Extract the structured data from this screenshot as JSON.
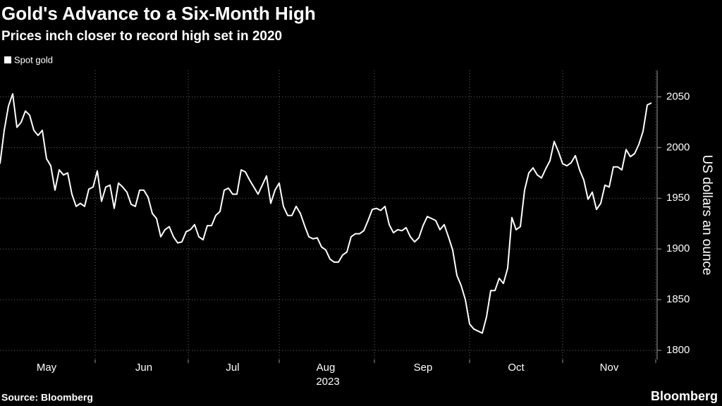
{
  "chart_data": {
    "type": "line",
    "title": "Gold's Advance to a Six-Month High",
    "subtitle": "Prices inch closer to record high set in 2020",
    "ylabel": "US dollars an ounce",
    "x_sublabel": "2023",
    "source": "Source: Bloomberg",
    "brand": "Bloomberg",
    "categories": [
      null,
      null,
      null,
      null,
      null,
      null,
      null,
      null,
      null,
      null,
      null,
      "May",
      null,
      null,
      null,
      null,
      null,
      null,
      null,
      null,
      null,
      null,
      null,
      null,
      null,
      null,
      null,
      null,
      null,
      null,
      null,
      null,
      null,
      null,
      "Jun",
      null,
      null,
      null,
      null,
      null,
      null,
      null,
      null,
      null,
      null,
      null,
      null,
      null,
      null,
      null,
      null,
      null,
      null,
      null,
      null,
      "Jul",
      null,
      null,
      null,
      null,
      null,
      null,
      null,
      null,
      null,
      null,
      null,
      null,
      null,
      null,
      null,
      null,
      null,
      null,
      null,
      null,
      null,
      "Aug",
      null,
      null,
      null,
      null,
      null,
      null,
      null,
      null,
      null,
      null,
      null,
      null,
      null,
      null,
      null,
      null,
      null,
      null,
      null,
      null,
      null,
      null,
      "Sep",
      null,
      null,
      null,
      null,
      null,
      null,
      null,
      null,
      null,
      null,
      null,
      null,
      null,
      null,
      null,
      null,
      null,
      null,
      null,
      null,
      null,
      "Oct",
      null,
      null,
      null,
      null,
      null,
      null,
      null,
      null,
      null,
      null,
      null,
      null,
      null,
      null,
      null,
      null,
      null,
      null,
      null,
      null,
      null,
      "Nov",
      null,
      null,
      null,
      null,
      null,
      null,
      null,
      null,
      null,
      null
    ],
    "series": [
      {
        "name": "Spot gold",
        "color": "#ffffff",
        "values": [
          1984,
          2017,
          2041,
          2053,
          2020,
          2025,
          2036,
          2032,
          2017,
          2012,
          2017,
          1989,
          1982,
          1958,
          1978,
          1973,
          1975,
          1954,
          1942,
          1945,
          1942,
          1959,
          1961,
          1977,
          1947,
          1961,
          1963,
          1940,
          1965,
          1961,
          1956,
          1944,
          1942,
          1958,
          1958,
          1951,
          1935,
          1930,
          1912,
          1919,
          1922,
          1912,
          1906,
          1907,
          1917,
          1919,
          1924,
          1912,
          1909,
          1923,
          1923,
          1933,
          1937,
          1958,
          1960,
          1954,
          1954,
          1978,
          1976,
          1968,
          1961,
          1954,
          1963,
          1972,
          1945,
          1958,
          1965,
          1942,
          1933,
          1933,
          1942,
          1935,
          1923,
          1912,
          1910,
          1911,
          1902,
          1899,
          1890,
          1887,
          1887,
          1894,
          1897,
          1912,
          1915,
          1915,
          1918,
          1928,
          1939,
          1940,
          1938,
          1942,
          1924,
          1916,
          1919,
          1918,
          1921,
          1912,
          1907,
          1911,
          1923,
          1932,
          1930,
          1928,
          1919,
          1924,
          1912,
          1899,
          1874,
          1864,
          1850,
          1826,
          1821,
          1819,
          1817,
          1833,
          1859,
          1859,
          1871,
          1866,
          1881,
          1931,
          1919,
          1922,
          1958,
          1975,
          1980,
          1973,
          1970,
          1979,
          1987,
          2006,
          1996,
          1984,
          1982,
          1985,
          1992,
          1978,
          1968,
          1949,
          1956,
          1939,
          1945,
          1963,
          1961,
          1981,
          1981,
          1978,
          1998,
          1991,
          1994,
          2003,
          2016,
          2042,
          2044
        ]
      }
    ],
    "ylim": [
      1791,
      2076
    ],
    "yticks": [
      1800,
      1850,
      1900,
      1950,
      2000,
      2050
    ],
    "grid": true,
    "background": "#000000"
  }
}
